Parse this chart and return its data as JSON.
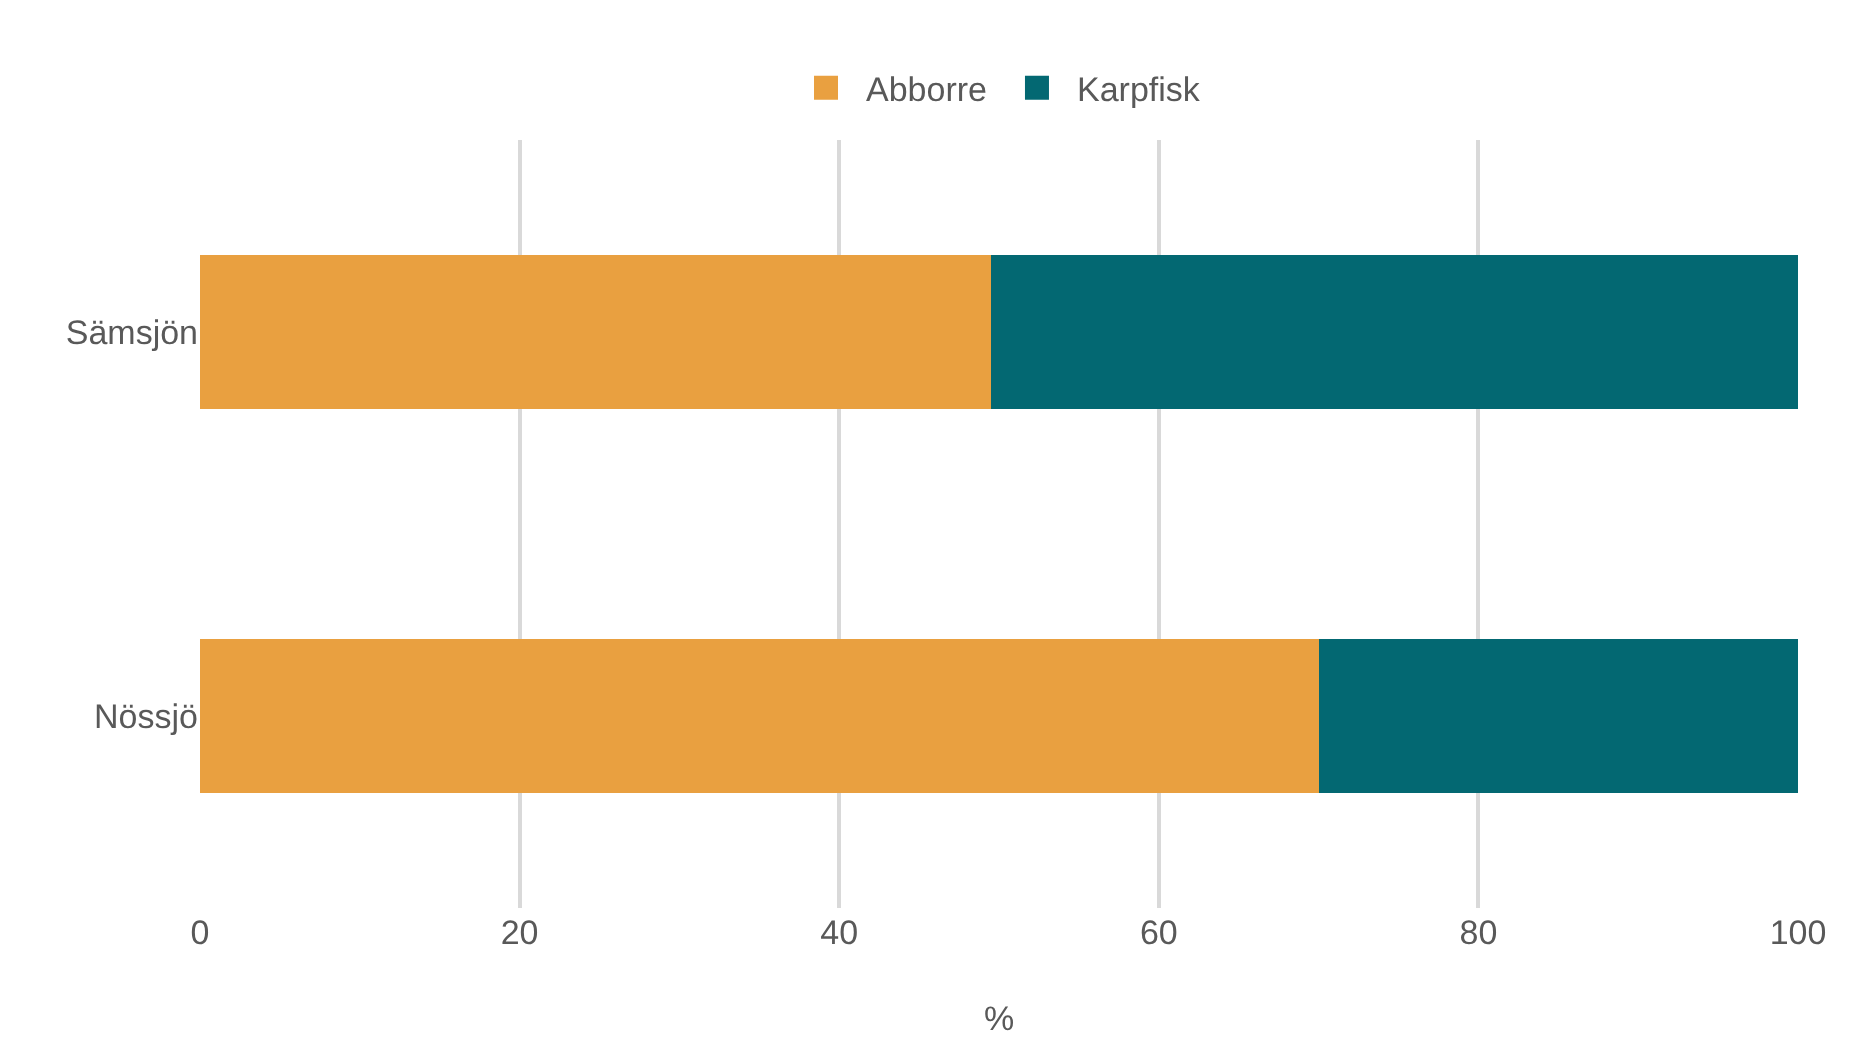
{
  "chart_data": {
    "type": "bar",
    "orientation": "horizontal",
    "stacked": true,
    "categories": [
      "Sämsjön",
      "Nössjö"
    ],
    "series": [
      {
        "name": "Abborre",
        "color": "#e9a040",
        "values": [
          49.5,
          70
        ]
      },
      {
        "name": "Karpfisk",
        "color": "#036872",
        "values": [
          50.5,
          30
        ]
      }
    ],
    "xlabel": "%",
    "xlim": [
      0,
      100
    ],
    "xticks": [
      0,
      20,
      40,
      60,
      80,
      100
    ],
    "grid": "x",
    "legend": "top"
  }
}
